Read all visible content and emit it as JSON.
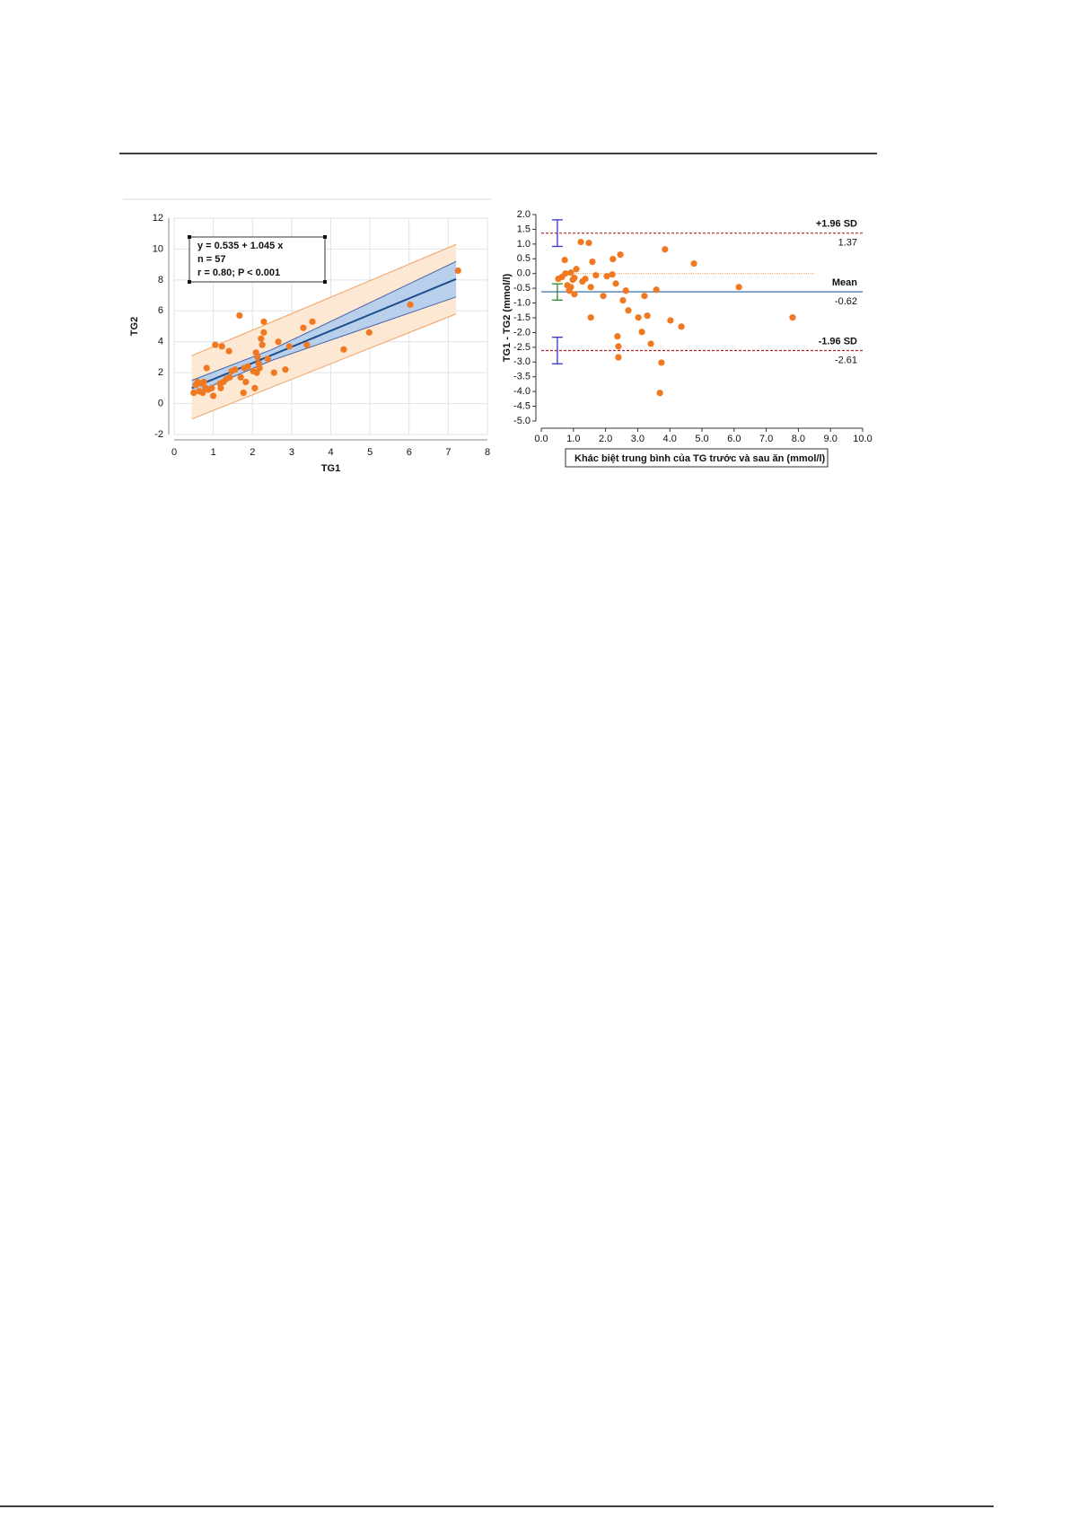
{
  "chart_data": [
    {
      "type": "scatter",
      "x_label": "TG1",
      "y_label": "TG2",
      "annotations": [
        "y = 0.535  +  1.045  x",
        "n = 57",
        "r = 0.80; P < 0.001"
      ],
      "xlim": [
        0,
        8
      ],
      "ylim": [
        -2,
        12
      ],
      "xticks": [
        0,
        1,
        2,
        3,
        4,
        5,
        6,
        7,
        8
      ],
      "yticks": [
        -2,
        0,
        2,
        4,
        6,
        8,
        10,
        12
      ],
      "grid": true,
      "color": "#f07820",
      "x": [
        0.5,
        0.55,
        0.64,
        0.69,
        0.73,
        0.8,
        0.83,
        0.87,
        0.96,
        1.0,
        1.05,
        1.19,
        1.22,
        1.26,
        1.33,
        1.4,
        1.42,
        1.56,
        1.67,
        1.7,
        1.77,
        1.79,
        1.83,
        2.02,
        2.06,
        2.09,
        2.13,
        2.16,
        2.18,
        2.22,
        2.25,
        2.29,
        2.29,
        2.39,
        2.55,
        2.66,
        2.84,
        2.94,
        3.3,
        3.39,
        3.53,
        4.33,
        4.98,
        6.03,
        7.25,
        0.6,
        0.76,
        1.17,
        1.47,
        2.11,
        1.88
      ],
      "values": [
        0.7,
        1.2,
        0.8,
        1.3,
        0.7,
        1.0,
        2.3,
        0.9,
        1.0,
        0.5,
        3.8,
        1.0,
        3.7,
        1.4,
        1.6,
        3.4,
        1.7,
        2.2,
        5.7,
        1.7,
        0.7,
        2.3,
        1.4,
        2.1,
        1.0,
        3.3,
        3.0,
        2.6,
        2.3,
        4.2,
        3.8,
        4.6,
        5.3,
        2.9,
        2.0,
        4.0,
        2.2,
        3.7,
        4.9,
        3.8,
        5.3,
        3.5,
        4.6,
        6.4,
        8.6,
        1.4,
        1.4,
        1.3,
        2.1,
        2.0,
        2.4
      ],
      "fit": {
        "x": [
          0.45,
          7.2
        ],
        "values": [
          1.0,
          8.06
        ],
        "color": "#1f4e8c"
      },
      "confidence_band": {
        "x": [
          0.45,
          2.5,
          7.2
        ],
        "lower": [
          0.6,
          2.8,
          6.9
        ],
        "upper": [
          1.5,
          3.5,
          9.2
        ],
        "color": "#b8d0ec",
        "edge": "#4a64a8"
      },
      "prediction_band": {
        "x": [
          0.45,
          7.2
        ],
        "lower": [
          -1.0,
          5.8
        ],
        "upper": [
          3.1,
          10.3
        ],
        "color": "#fde8d4",
        "edge": "#f2a060"
      }
    },
    {
      "type": "bland-altman",
      "x_label": "Khác biệt trung bình của TG trước và sau ăn (mmol/l)",
      "y_label": "TG1 - TG2 (mmol/l)",
      "xlim": [
        0,
        10
      ],
      "ylim": [
        -5,
        2
      ],
      "xticks": [
        {
          "value": 0,
          "label": "0.0"
        },
        {
          "value": 1,
          "label": "1.0"
        },
        {
          "value": 2,
          "label": "2.0"
        },
        {
          "value": 3,
          "label": "3.0"
        },
        {
          "value": 4,
          "label": "4.0"
        },
        {
          "value": 5,
          "label": "5.0"
        },
        {
          "value": 6,
          "label": "6.0"
        },
        {
          "value": 7,
          "label": "7.0"
        },
        {
          "value": 8,
          "label": "8.0"
        },
        {
          "value": 9,
          "label": "9.0"
        },
        {
          "value": 10,
          "label": "10.0"
        }
      ],
      "yticks": [
        {
          "value": 2,
          "label": "2.0"
        },
        1.5,
        {
          "value": 1,
          "label": "1.0"
        },
        0.5,
        {
          "value": 0,
          "label": "0.0"
        },
        -0.5,
        {
          "value": -1,
          "label": "-1.0"
        },
        -1.5,
        {
          "value": -2,
          "label": "-2.0"
        },
        -2.5,
        {
          "value": -3,
          "label": "-3.0"
        },
        -3.5,
        {
          "value": -4,
          "label": "-4.0"
        },
        -4.5,
        {
          "value": -5,
          "label": "-5.0"
        }
      ],
      "color": "#f07820",
      "x": [
        0.53,
        0.64,
        0.73,
        0.75,
        0.81,
        0.87,
        0.92,
        0.98,
        1.03,
        1.09,
        1.23,
        1.28,
        1.37,
        1.48,
        1.54,
        1.54,
        1.59,
        1.7,
        1.93,
        2.04,
        2.21,
        2.23,
        2.32,
        2.37,
        2.4,
        2.4,
        2.46,
        2.54,
        2.63,
        2.71,
        3.02,
        3.13,
        3.21,
        3.3,
        3.41,
        3.58,
        3.69,
        3.74,
        3.85,
        4.02,
        4.36,
        4.75,
        6.15,
        7.82,
        0.92,
        1.03
      ],
      "values": [
        -0.18,
        -0.12,
        0.46,
        0,
        -0.4,
        -0.58,
        0.03,
        -0.21,
        -0.7,
        0.15,
        1.07,
        -0.27,
        -0.18,
        1.04,
        -0.46,
        -1.49,
        0.4,
        -0.06,
        -0.76,
        -0.09,
        -0.03,
        0.49,
        -0.34,
        -2.13,
        -2.47,
        -2.84,
        0.64,
        -0.91,
        -0.58,
        -1.25,
        -1.49,
        -1.98,
        -0.76,
        -1.43,
        -2.38,
        -0.55,
        -4.05,
        -3.02,
        0.82,
        -1.59,
        -1.8,
        0.34,
        -0.46,
        -1.49,
        -0.46,
        -0.15
      ],
      "lines": [
        {
          "name": "+1.96 SD",
          "value": 1.37,
          "color": "#b02020",
          "dashed": true,
          "ci": [
            0.92,
            1.82
          ],
          "ci_color": "#3333cc"
        },
        {
          "name": "Mean",
          "value": -0.62,
          "color": "#2060a0",
          "dashed": false,
          "ci": [
            -0.9,
            -0.35
          ],
          "ci_color": "#2a8a2a"
        },
        {
          "name": "-1.96 SD",
          "value": -2.61,
          "color": "#b02020",
          "dashed": true,
          "ci": [
            -3.06,
            -2.16
          ],
          "ci_color": "#3333cc"
        }
      ],
      "ci_x": 0.5,
      "reference_line": {
        "value": 0,
        "x": [
          0.7,
          8.5
        ],
        "color": "#f0a060"
      }
    }
  ]
}
